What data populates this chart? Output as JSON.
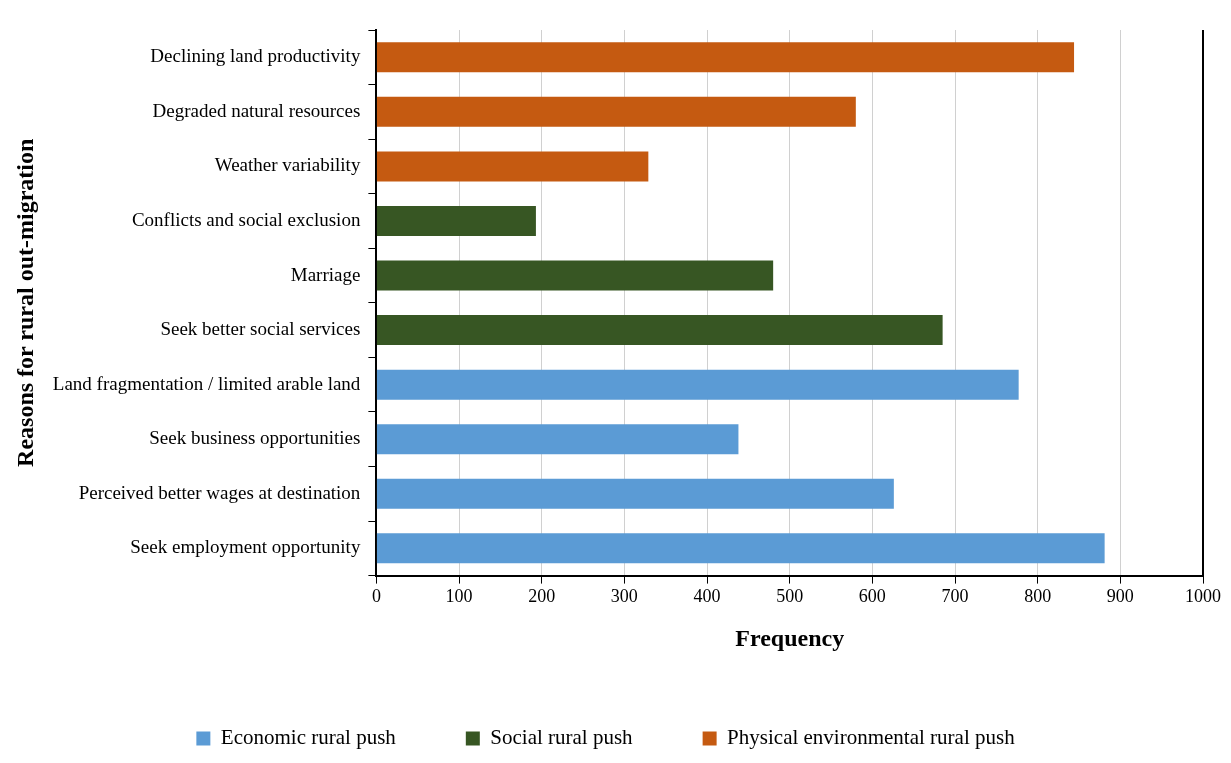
{
  "chart_data": {
    "type": "bar",
    "orientation": "horizontal",
    "xlabel": "Frequency",
    "ylabel": "Reasons for rural out-migration",
    "categories": [
      "Declining land productivity",
      "Degraded natural resources",
      "Weather variability",
      "Conflicts and social exclusion",
      "Marriage",
      "Seek better social services",
      "Land fragmentation / limited arable land",
      "Seek business opportunities",
      "Perceived better wages at destination",
      "Seek employment opportunity"
    ],
    "series": [
      {
        "name": "Economic rural push",
        "color": "#5b9bd5",
        "values": [
          null,
          null,
          null,
          null,
          null,
          null,
          777,
          438,
          626,
          881
        ]
      },
      {
        "name": "Social rural push",
        "color": "#375623",
        "values": [
          null,
          null,
          null,
          193,
          480,
          685,
          null,
          null,
          null,
          null
        ]
      },
      {
        "name": "Physical environmental rural push",
        "color": "#c55a11",
        "values": [
          844,
          580,
          329,
          null,
          null,
          null,
          null,
          null,
          null,
          null
        ]
      }
    ],
    "xlim": [
      0,
      1000
    ],
    "xticks": [
      0,
      100,
      200,
      300,
      400,
      500,
      600,
      700,
      800,
      900,
      1000
    ],
    "grid": "x",
    "legend": "bottom"
  }
}
